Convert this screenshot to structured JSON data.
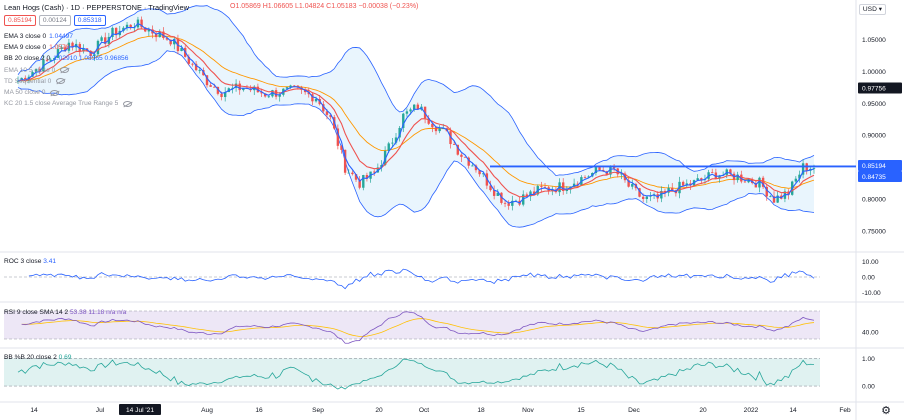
{
  "header": {
    "title": "Lean Hogs (Cash) · 1D · PEPPERSTONE · TradingView",
    "ohlc": "O1.05869 H1.06605 L1.04824 C1.05183 −0.00038 (−0.23%)",
    "price_box": "0.85194",
    "spread": "0.00124",
    "ask_box": "0.85318",
    "currency": "USD"
  },
  "indicators": [
    {
      "name": "EMA 3 close 0",
      "value": "1.04497",
      "value_color": "#2962ff",
      "muted": false,
      "eye": false
    },
    {
      "name": "EMA 9 close 0",
      "value": "1.0578",
      "value_color": "#ef5350",
      "muted": false,
      "eye": false
    },
    {
      "name": "BB 20 close 2 0",
      "value": "1.02910 1.08965 0.96856",
      "value_color": "#2962ff",
      "muted": false,
      "eye": false
    },
    {
      "name": "EMA 10 5 close 0",
      "value": "",
      "value_color": "#9598a1",
      "muted": true,
      "eye": true
    },
    {
      "name": "TD Sequential 0",
      "value": "",
      "value_color": "#9598a1",
      "muted": true,
      "eye": true
    },
    {
      "name": "MA 50 close 0",
      "value": "",
      "value_color": "#9598a1",
      "muted": true,
      "eye": true
    },
    {
      "name": "KC 20 1.5 close Average True Range 5",
      "value": "",
      "value_color": "#9598a1",
      "muted": true,
      "eye": true
    }
  ],
  "panes": {
    "roc": {
      "label": "ROC 3 close",
      "value": "3.41",
      "color": "#2962ff"
    },
    "rsi": {
      "label": "RSI 9 close SMA 14 2",
      "value": "53.38 11.18 n/a n/a",
      "color": "#7e57c2"
    },
    "bbp": {
      "label": "BB %B 20 close 2",
      "value": "0.69",
      "color": "#26a69a"
    }
  },
  "price_axis": {
    "labels": [
      "1.05000",
      "1.00000",
      "0.95000",
      "0.90000",
      "0.80000",
      "0.75000"
    ],
    "current_price": "0.85194",
    "bb_mid_label": "0.84735",
    "crosshair_price": "0.97756",
    "roc_labels": [
      "10.00",
      "0.00",
      "-10.00"
    ],
    "rsi_labels": [
      "40.00"
    ],
    "bbp_labels": [
      "1.00",
      "0.00"
    ]
  },
  "time_axis": {
    "labels": [
      "14",
      "Jul",
      "14 Jul '21",
      "Aug",
      "16",
      "Sep",
      "20",
      "Oct",
      "18",
      "Nov",
      "15",
      "Dec",
      "20",
      "2022",
      "14",
      "Feb"
    ]
  },
  "colors": {
    "up": "#26a69a",
    "down": "#ef5350",
    "ema3": "#2962ff",
    "ema9": "#ef5350",
    "ema_orange": "#ff9800",
    "bb": "#2962ff",
    "bb_fill": "#e3f2fd",
    "hline": "#2962ff",
    "rsi_fill": "#ede7f6",
    "bbp_fill": "#e0f2f1"
  },
  "chart_data": {
    "type": "candlestick",
    "title": "Lean Hogs (Cash) · 1D · PEPPERSTONE",
    "horizontal_line": 0.851,
    "waypoints": [
      [
        0,
        0.985
      ],
      [
        8,
        1.015
      ],
      [
        14,
        1.045
      ],
      [
        20,
        1.03
      ],
      [
        26,
        1.06
      ],
      [
        32,
        1.075
      ],
      [
        38,
        1.06
      ],
      [
        42,
        1.05
      ],
      [
        48,
        1.01
      ],
      [
        52,
        0.985
      ],
      [
        56,
        0.968
      ],
      [
        62,
        0.975
      ],
      [
        68,
        0.965
      ],
      [
        76,
        0.97
      ],
      [
        82,
        0.96
      ],
      [
        86,
        0.925
      ],
      [
        90,
        0.85
      ],
      [
        94,
        0.825
      ],
      [
        98,
        0.84
      ],
      [
        102,
        0.88
      ],
      [
        106,
        0.93
      ],
      [
        110,
        0.945
      ],
      [
        114,
        0.92
      ],
      [
        118,
        0.9
      ],
      [
        122,
        0.87
      ],
      [
        126,
        0.85
      ],
      [
        130,
        0.82
      ],
      [
        134,
        0.795
      ],
      [
        138,
        0.8
      ],
      [
        144,
        0.815
      ],
      [
        150,
        0.82
      ],
      [
        156,
        0.835
      ],
      [
        160,
        0.845
      ],
      [
        164,
        0.845
      ],
      [
        168,
        0.82
      ],
      [
        172,
        0.8
      ],
      [
        176,
        0.8
      ],
      [
        180,
        0.815
      ],
      [
        186,
        0.825
      ],
      [
        192,
        0.84
      ],
      [
        198,
        0.835
      ],
      [
        204,
        0.825
      ],
      [
        208,
        0.8
      ],
      [
        212,
        0.81
      ],
      [
        216,
        0.85
      ]
    ],
    "roc_range": [
      -15,
      15
    ],
    "rsi_range": [
      20,
      80
    ],
    "bbp_range": [
      -0.5,
      1.3
    ]
  }
}
